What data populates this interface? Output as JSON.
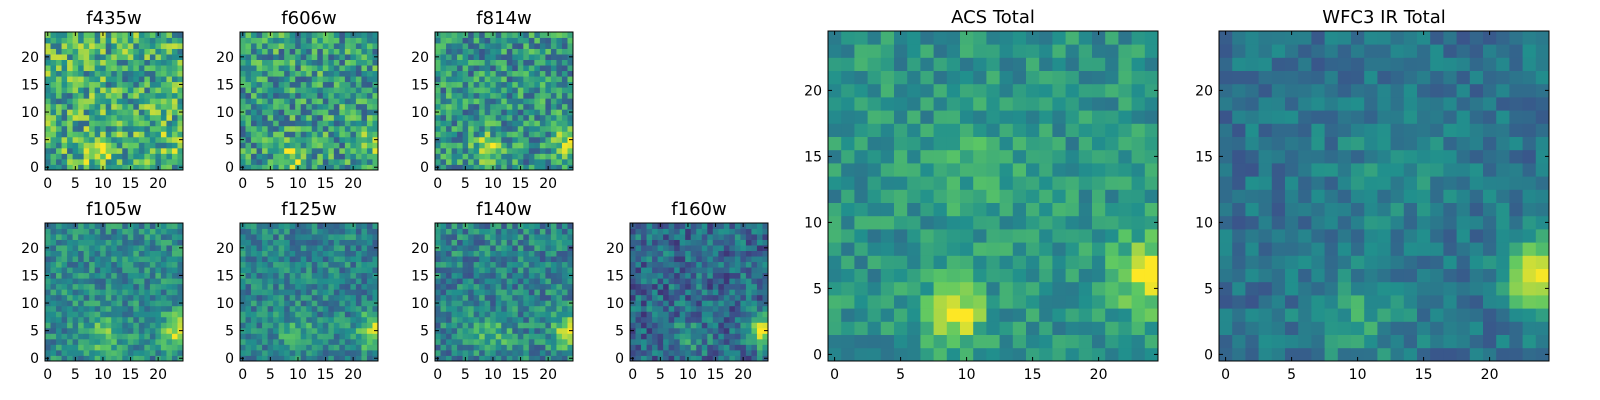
{
  "figure": {
    "colormap": "viridis",
    "colormap_stops": [
      "#440154",
      "#3b528b",
      "#21908d",
      "#5dc863",
      "#fde725"
    ],
    "background": "#ffffff"
  },
  "chart_data": [
    {
      "type": "heatmap",
      "title": "f435w",
      "grid_size": 25,
      "xticks": [
        "0",
        "5",
        "10",
        "15",
        "20"
      ],
      "yticks": [
        "0",
        "5",
        "10",
        "15",
        "20"
      ],
      "xlim": [
        -0.5,
        24.5
      ],
      "ylim": [
        -0.5,
        24.5
      ],
      "noise": 0.3,
      "bias": 0.62,
      "blobs": [
        {
          "x": 9,
          "y": 3,
          "sigma": 1.8,
          "amp": 0.3
        },
        {
          "x": 24,
          "y": 5,
          "sigma": 2,
          "amp": 0.2
        }
      ],
      "seed": 11
    },
    {
      "type": "heatmap",
      "title": "f606w",
      "grid_size": 25,
      "xticks": [
        "0",
        "5",
        "10",
        "15",
        "20"
      ],
      "yticks": [
        "0",
        "5",
        "10",
        "15",
        "20"
      ],
      "xlim": [
        -0.5,
        24.5
      ],
      "ylim": [
        -0.5,
        24.5
      ],
      "noise": 0.28,
      "bias": 0.55,
      "blobs": [
        {
          "x": 9,
          "y": 2,
          "sigma": 1.8,
          "amp": 0.35
        },
        {
          "x": 24,
          "y": 5,
          "sigma": 2,
          "amp": 0.3
        }
      ],
      "seed": 23
    },
    {
      "type": "heatmap",
      "title": "f814w",
      "grid_size": 25,
      "xticks": [
        "0",
        "5",
        "10",
        "15",
        "20"
      ],
      "yticks": [
        "0",
        "5",
        "10",
        "15",
        "20"
      ],
      "xlim": [
        -0.5,
        24.5
      ],
      "ylim": [
        -0.5,
        24.5
      ],
      "noise": 0.26,
      "bias": 0.52,
      "blobs": [
        {
          "x": 9,
          "y": 3,
          "sigma": 2,
          "amp": 0.35
        },
        {
          "x": 24,
          "y": 5,
          "sigma": 2,
          "amp": 0.4
        }
      ],
      "seed": 37
    },
    {
      "type": "heatmap",
      "title": "f105w",
      "grid_size": 25,
      "xticks": [
        "0",
        "5",
        "10",
        "15",
        "20"
      ],
      "yticks": [
        "0",
        "5",
        "10",
        "15",
        "20"
      ],
      "xlim": [
        -0.5,
        24.5
      ],
      "ylim": [
        -0.5,
        24.5
      ],
      "noise": 0.18,
      "bias": 0.48,
      "blobs": [
        {
          "x": 10,
          "y": 4,
          "sigma": 2.5,
          "amp": 0.25
        },
        {
          "x": 24,
          "y": 5,
          "sigma": 2.2,
          "amp": 0.45
        }
      ],
      "seed": 41
    },
    {
      "type": "heatmap",
      "title": "f125w",
      "grid_size": 25,
      "xticks": [
        "0",
        "5",
        "10",
        "15",
        "20"
      ],
      "yticks": [
        "0",
        "5",
        "10",
        "15",
        "20"
      ],
      "xlim": [
        -0.5,
        24.5
      ],
      "ylim": [
        -0.5,
        24.5
      ],
      "noise": 0.18,
      "bias": 0.45,
      "blobs": [
        {
          "x": 10,
          "y": 4,
          "sigma": 2.5,
          "amp": 0.2
        },
        {
          "x": 24,
          "y": 5,
          "sigma": 2.2,
          "amp": 0.5
        }
      ],
      "seed": 53
    },
    {
      "type": "heatmap",
      "title": "f140w",
      "grid_size": 25,
      "xticks": [
        "0",
        "5",
        "10",
        "15",
        "20"
      ],
      "yticks": [
        "0",
        "5",
        "10",
        "15",
        "20"
      ],
      "xlim": [
        -0.5,
        24.5
      ],
      "ylim": [
        -0.5,
        24.5
      ],
      "noise": 0.2,
      "bias": 0.45,
      "blobs": [
        {
          "x": 10,
          "y": 4,
          "sigma": 2.5,
          "amp": 0.2
        },
        {
          "x": 24,
          "y": 5,
          "sigma": 2.2,
          "amp": 0.5
        }
      ],
      "seed": 67
    },
    {
      "type": "heatmap",
      "title": "f160w",
      "grid_size": 25,
      "xticks": [
        "0",
        "5",
        "10",
        "15",
        "20"
      ],
      "yticks": [
        "0",
        "5",
        "10",
        "15",
        "20"
      ],
      "xlim": [
        -0.5,
        24.5
      ],
      "ylim": [
        -0.5,
        24.5
      ],
      "noise": 0.2,
      "bias": 0.35,
      "blobs": [
        {
          "x": 10,
          "y": 4,
          "sigma": 2.5,
          "amp": 0.15
        },
        {
          "x": 24,
          "y": 5,
          "sigma": 2.2,
          "amp": 0.55
        }
      ],
      "seed": 79
    },
    {
      "type": "heatmap",
      "title": "ACS Total",
      "grid_size": 25,
      "xticks": [
        "0",
        "5",
        "10",
        "15",
        "20"
      ],
      "yticks": [
        "0",
        "5",
        "10",
        "15",
        "20"
      ],
      "xlim": [
        -0.5,
        24.5
      ],
      "ylim": [
        -0.5,
        24.5
      ],
      "noise": 0.14,
      "bias": 0.52,
      "blobs": [
        {
          "x": 9,
          "y": 3,
          "sigma": 1.6,
          "amp": 0.45
        },
        {
          "x": 24,
          "y": 6,
          "sigma": 2,
          "amp": 0.45
        },
        {
          "x": 11,
          "y": 14,
          "sigma": 3,
          "amp": 0.1
        }
      ],
      "seed": 97
    },
    {
      "type": "heatmap",
      "title": "WFC3 IR Total",
      "grid_size": 25,
      "xticks": [
        "0",
        "5",
        "10",
        "15",
        "20"
      ],
      "yticks": [
        "0",
        "5",
        "10",
        "15",
        "20"
      ],
      "xlim": [
        -0.5,
        24.5
      ],
      "ylim": [
        -0.5,
        24.5
      ],
      "noise": 0.12,
      "bias": 0.38,
      "blobs": [
        {
          "x": 10,
          "y": 3,
          "sigma": 2.5,
          "amp": 0.2
        },
        {
          "x": 24,
          "y": 6,
          "sigma": 2,
          "amp": 0.6
        },
        {
          "x": 13,
          "y": 14,
          "sigma": 3.5,
          "amp": 0.1
        }
      ],
      "seed": 113
    }
  ]
}
